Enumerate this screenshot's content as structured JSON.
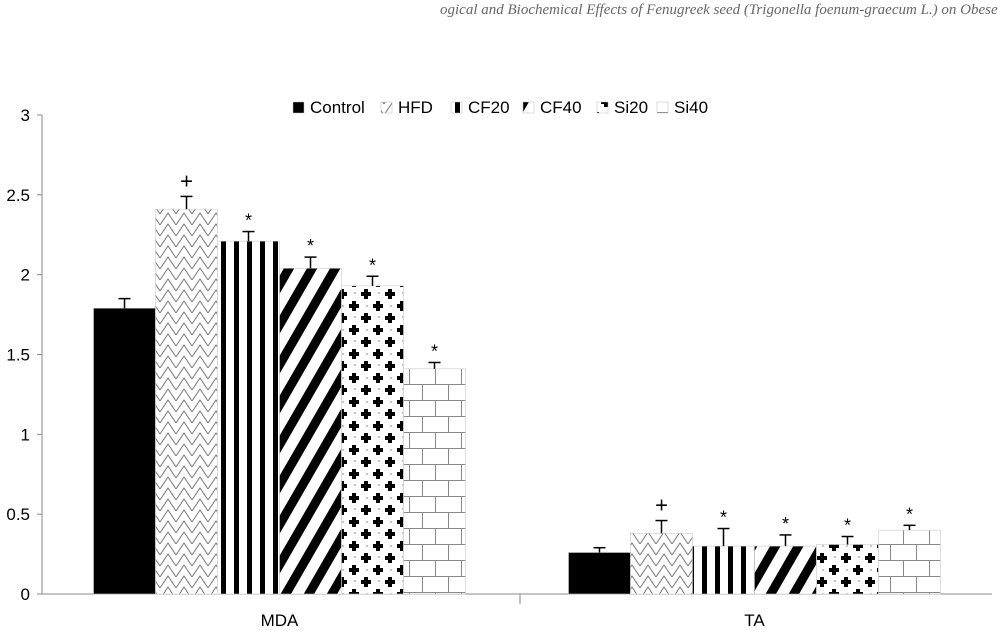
{
  "page": {
    "running_header": "ogical and Biochemical Effects of Fenugreek seed (Trigonella foenum-graecum L.) on Obese Rats"
  },
  "chart_data": {
    "type": "bar",
    "categories": [
      "MDA",
      "TA"
    ],
    "series": [
      {
        "name": "Control",
        "values": [
          1.79,
          0.26
        ],
        "errors": [
          0.06,
          0.03
        ],
        "mark": ""
      },
      {
        "name": "HFD",
        "values": [
          2.41,
          0.38
        ],
        "errors": [
          0.08,
          0.08
        ],
        "mark": "+"
      },
      {
        "name": "CF20",
        "values": [
          2.21,
          0.3
        ],
        "errors": [
          0.06,
          0.11
        ],
        "mark": "*"
      },
      {
        "name": "CF40",
        "values": [
          2.04,
          0.3
        ],
        "errors": [
          0.07,
          0.07
        ],
        "mark": "*"
      },
      {
        "name": "Si20",
        "values": [
          1.93,
          0.31
        ],
        "errors": [
          0.06,
          0.05
        ],
        "mark": "*"
      },
      {
        "name": "Si40",
        "values": [
          1.41,
          0.4
        ],
        "errors": [
          0.04,
          0.03
        ],
        "mark": "*"
      }
    ],
    "yticks": [
      "0",
      "0.5",
      "1",
      "1.5",
      "2",
      "2.5",
      "3"
    ],
    "ylim": [
      0,
      3
    ],
    "xlabel": "",
    "ylabel": "",
    "title": "",
    "legend_position": "top-center",
    "grid": false,
    "patterns": [
      "solid-black",
      "zigzag",
      "vertical-stripes",
      "diagonal-stripes",
      "crosses-dots",
      "brick"
    ]
  }
}
